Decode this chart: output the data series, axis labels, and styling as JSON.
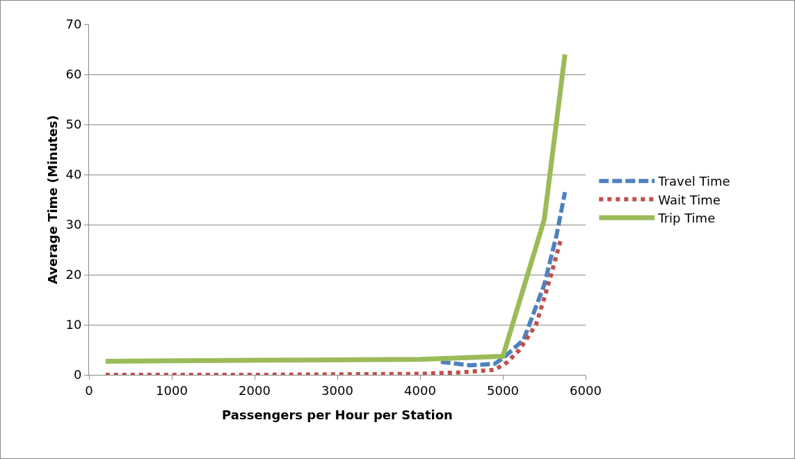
{
  "chart_data": {
    "type": "line",
    "xlabel": "Passengers per Hour per Station",
    "ylabel": "Average Time (Minutes)",
    "xlim": [
      0,
      6000
    ],
    "xticks": [
      0,
      1000,
      2000,
      3000,
      4000,
      5000,
      6000
    ],
    "ylim": [
      0,
      70
    ],
    "yticks": [
      0,
      10,
      20,
      30,
      40,
      50,
      60,
      70
    ],
    "grid": "y",
    "legend": "right",
    "marker": "none",
    "series": [
      {
        "name": "Travel Time",
        "color": "#4f81bd",
        "line_style": "dashed",
        "x": [
          4250,
          4600,
          4900,
          5000,
          5250,
          5500,
          5650,
          5750
        ],
        "values": [
          2.6,
          1.9,
          2.2,
          3.3,
          7,
          18,
          28,
          36.5
        ]
      },
      {
        "name": "Wait Time",
        "color": "#c0504d",
        "line_style": "dotted",
        "x": [
          200,
          1000,
          2000,
          3000,
          4000,
          4500,
          4900,
          5050,
          5200,
          5300,
          5400,
          5500,
          5600,
          5700
        ],
        "values": [
          0,
          0,
          0,
          0.1,
          0.2,
          0.5,
          1,
          2.5,
          5,
          7.5,
          10,
          15.3,
          21,
          27
        ]
      },
      {
        "name": "Trip Time",
        "color": "#9bbb59",
        "line_style": "solid",
        "x": [
          200,
          1000,
          2000,
          3000,
          4000,
          5000,
          5500,
          5750
        ],
        "values": [
          2.7,
          2.8,
          2.9,
          3,
          3.1,
          3.7,
          31,
          64
        ]
      }
    ]
  }
}
